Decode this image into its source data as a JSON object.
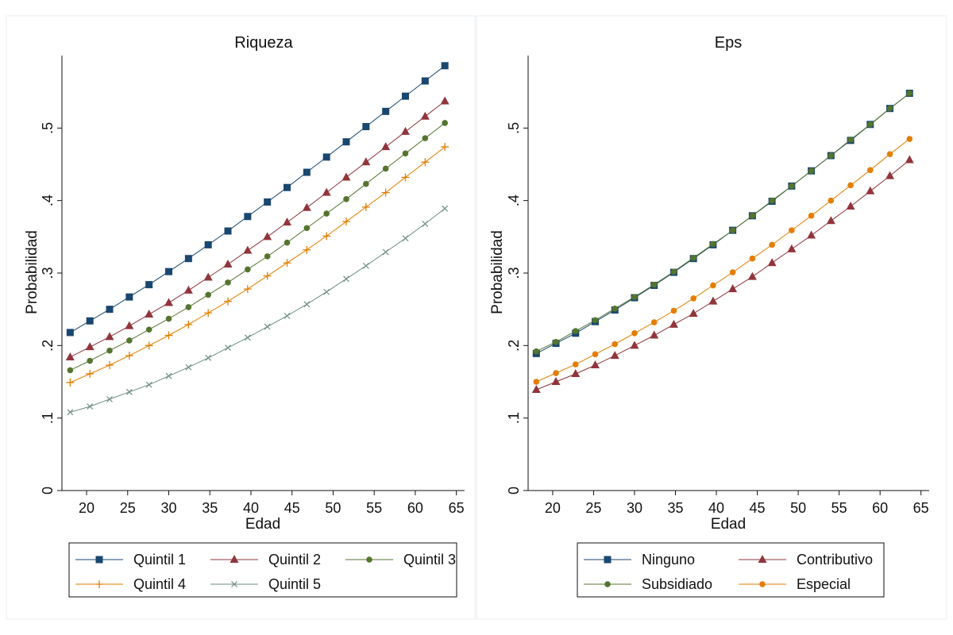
{
  "chart_data": [
    {
      "type": "line",
      "title": "Riqueza",
      "xlabel": "Edad",
      "ylabel": "Probabilidad",
      "xlim": [
        17,
        66
      ],
      "ylim": [
        0,
        0.6
      ],
      "xticks": [
        20,
        25,
        30,
        35,
        40,
        45,
        50,
        55,
        60,
        65
      ],
      "yticks": [
        0,
        0.1,
        0.2,
        0.3,
        0.4,
        0.5
      ],
      "ytick_labels": [
        "0",
        ".1",
        ".2",
        ".3",
        ".4",
        ".5"
      ],
      "grid": false,
      "legend_position": "bottom",
      "legend_columns": 3,
      "x": [
        18,
        20.4,
        22.8,
        25.2,
        27.6,
        30,
        32.4,
        34.8,
        37.2,
        39.6,
        42,
        44.4,
        46.8,
        49.2,
        51.6,
        54,
        56.4,
        58.8,
        61.2,
        63.6
      ],
      "series": [
        {
          "name": "Quintil 1",
          "color": "#1a476f",
          "marker": "square",
          "values": [
            0.218,
            0.234,
            0.25,
            0.267,
            0.284,
            0.302,
            0.32,
            0.339,
            0.358,
            0.378,
            0.398,
            0.418,
            0.439,
            0.46,
            0.481,
            0.502,
            0.523,
            0.544,
            0.565,
            0.586
          ]
        },
        {
          "name": "Quintil 2",
          "color": "#90353b",
          "marker": "triangle",
          "values": [
            0.184,
            0.198,
            0.212,
            0.227,
            0.243,
            0.259,
            0.276,
            0.294,
            0.312,
            0.331,
            0.35,
            0.37,
            0.39,
            0.411,
            0.432,
            0.453,
            0.474,
            0.495,
            0.516,
            0.537
          ]
        },
        {
          "name": "Quintil 3",
          "color": "#55752f",
          "marker": "circle",
          "values": [
            0.166,
            0.179,
            0.193,
            0.207,
            0.222,
            0.237,
            0.253,
            0.27,
            0.287,
            0.305,
            0.323,
            0.342,
            0.362,
            0.382,
            0.402,
            0.423,
            0.444,
            0.465,
            0.486,
            0.507
          ]
        },
        {
          "name": "Quintil 4",
          "color": "#e37e00",
          "marker": "plus",
          "values": [
            0.149,
            0.161,
            0.173,
            0.186,
            0.2,
            0.214,
            0.229,
            0.245,
            0.261,
            0.278,
            0.296,
            0.314,
            0.332,
            0.351,
            0.371,
            0.391,
            0.411,
            0.432,
            0.453,
            0.474
          ]
        },
        {
          "name": "Quintil 5",
          "color": "#6e8e84",
          "marker": "x",
          "values": [
            0.108,
            0.116,
            0.126,
            0.136,
            0.146,
            0.158,
            0.17,
            0.183,
            0.197,
            0.211,
            0.226,
            0.241,
            0.257,
            0.274,
            0.292,
            0.31,
            0.329,
            0.348,
            0.368,
            0.389
          ]
        }
      ]
    },
    {
      "type": "line",
      "title": "Eps",
      "xlabel": "Edad",
      "ylabel": "Probabilidad",
      "xlim": [
        17,
        66
      ],
      "ylim": [
        0,
        0.6
      ],
      "xticks": [
        20,
        25,
        30,
        35,
        40,
        45,
        50,
        55,
        60,
        65
      ],
      "yticks": [
        0,
        0.1,
        0.2,
        0.3,
        0.4,
        0.5
      ],
      "ytick_labels": [
        "0",
        ".1",
        ".2",
        ".3",
        ".4",
        ".5"
      ],
      "grid": false,
      "legend_position": "bottom",
      "legend_columns": 2,
      "x": [
        18,
        20.4,
        22.8,
        25.2,
        27.6,
        30,
        32.4,
        34.8,
        37.2,
        39.6,
        42,
        44.4,
        46.8,
        49.2,
        51.6,
        54,
        56.4,
        58.8,
        61.2,
        63.6
      ],
      "series": [
        {
          "name": "Ninguno",
          "color": "#1a476f",
          "marker": "square",
          "values": [
            0.189,
            0.203,
            0.217,
            0.233,
            0.249,
            0.266,
            0.283,
            0.301,
            0.32,
            0.339,
            0.359,
            0.379,
            0.399,
            0.42,
            0.441,
            0.462,
            0.483,
            0.505,
            0.527,
            0.548
          ]
        },
        {
          "name": "Contributivo",
          "color": "#90353b",
          "marker": "triangle",
          "values": [
            0.139,
            0.15,
            0.161,
            0.173,
            0.186,
            0.2,
            0.214,
            0.229,
            0.244,
            0.261,
            0.278,
            0.295,
            0.314,
            0.333,
            0.352,
            0.372,
            0.392,
            0.413,
            0.434,
            0.456
          ]
        },
        {
          "name": "Subsidiado",
          "color": "#55752f",
          "marker": "circle",
          "values": [
            0.192,
            0.205,
            0.22,
            0.235,
            0.251,
            0.267,
            0.284,
            0.302,
            0.321,
            0.34,
            0.359,
            0.379,
            0.4,
            0.42,
            0.441,
            0.462,
            0.484,
            0.505,
            0.527,
            0.548
          ]
        },
        {
          "name": "Especial",
          "color": "#e37e00",
          "marker": "circle",
          "values": [
            0.15,
            0.162,
            0.174,
            0.188,
            0.202,
            0.217,
            0.232,
            0.248,
            0.265,
            0.283,
            0.301,
            0.32,
            0.339,
            0.359,
            0.379,
            0.4,
            0.421,
            0.442,
            0.464,
            0.485
          ]
        }
      ]
    }
  ]
}
